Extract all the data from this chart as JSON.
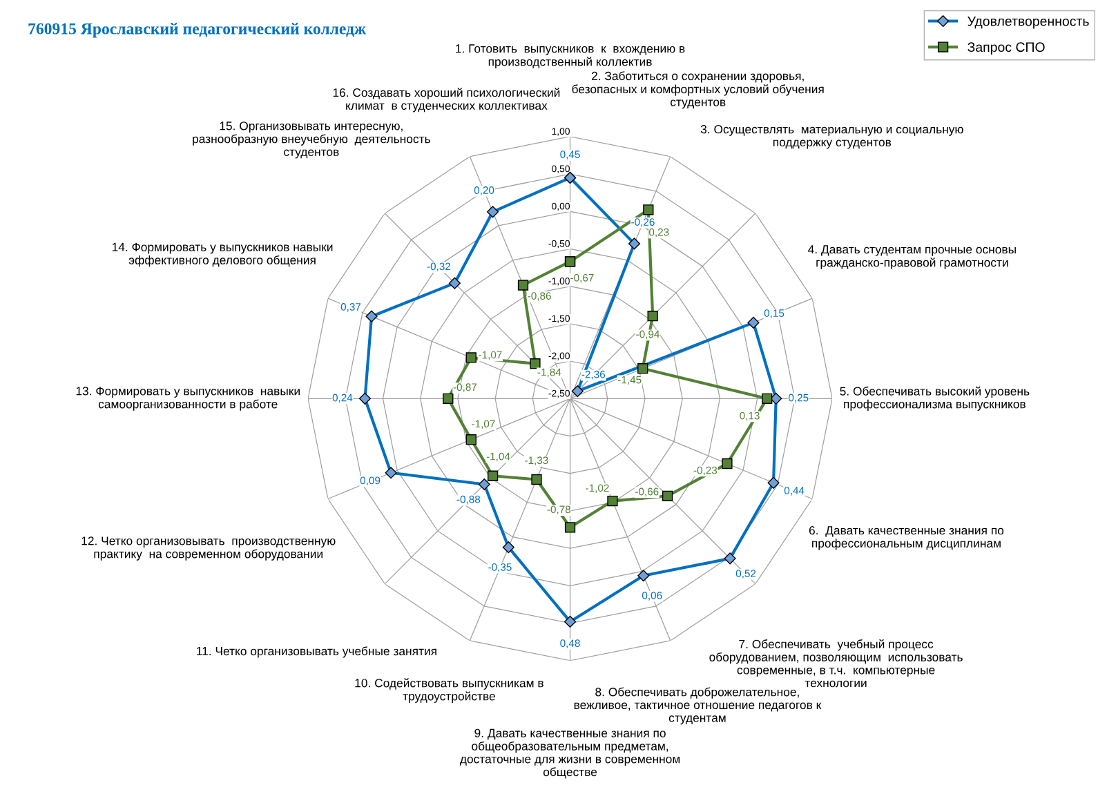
{
  "chart_data": {
    "type": "radar",
    "title": "760915 Ярославский педагогический колледж",
    "categories": [
      "1. Готовить  выпускников  к  вхождению в\nпроизводственный коллектив",
      "2. Заботиться о сохранении здоровья,\nбезопасных и комфортных условий обучения\nстудентов",
      "3. Осуществлять  материальную и социальную\nподдержку студентов",
      "4. Давать студентам прочные основы\nгражданско-правовой грамотности",
      "5. Обеспечивать высокий уровень\nпрофессионализма выпускников",
      "6.  Давать качественные знания по\nпрофессиональным дисциплинам",
      "7. Обеспечивать  учебный процесс\nоборудованием, позволяющим  использовать\nсовременные, в т.ч.  компьютерные\nтехнологии",
      "8. Обеспечивать доброжелательное,\nвежливое, тактичное отношение педагогов к\nстудентам",
      "9. Давать качественные знания по\nобщеобразовательным предметам,\nдостаточные для жизни в современном\nобществе",
      "10. Содействовать выпускникам в\nтрудоустройстве",
      "11. Четко организовывать учебные занятия",
      "12. Четко организовывать  производственную\nпрактику  на современном оборудовании",
      "13. Формировать у выпускников  навыки\nсамоорганизованности в работе",
      "14. Формировать у выпускников навыки\nэффективного делового общения",
      "15. Организовывать интересную,\nразнообразную внеучебную  деятельность\nстудентов",
      "16. Создавать хороший психологический\nклимат  в студенческих коллективах"
    ],
    "series": [
      {
        "name": "Удовлетворенность",
        "color": "#0070c0",
        "marker": "diamond",
        "value_labels": [
          "0,45",
          "-0,26",
          "-2,36",
          "0,15",
          "0,25",
          "0,44",
          "0,52",
          "0,06",
          "0,48",
          "-0,35",
          "-0,88",
          "0,09",
          "0,24",
          "0,37",
          "-0,32",
          "0,20"
        ],
        "values": [
          0.45,
          -0.26,
          -2.36,
          0.15,
          0.25,
          0.44,
          0.52,
          0.06,
          0.48,
          -0.35,
          -0.88,
          0.09,
          0.24,
          0.37,
          -0.32,
          0.2
        ]
      },
      {
        "name": "Запрос СПО",
        "color": "#538135",
        "marker": "square",
        "value_labels": [
          "-0,67",
          "0,23",
          "-0,94",
          "-1,45",
          "0,13",
          "-0,23",
          "-0,66",
          "-1,02",
          "-0,78",
          "-1,33",
          "-1,04",
          "-1,07",
          "-0,87",
          "-1,07",
          "-1,84",
          "-0,86"
        ],
        "values": [
          -0.67,
          0.23,
          -0.94,
          -1.45,
          0.13,
          -0.23,
          -0.66,
          -1.02,
          -0.78,
          -1.33,
          -1.04,
          -1.07,
          -0.87,
          -1.07,
          -1.84,
          -0.86
        ]
      }
    ],
    "ylim": [
      -2.5,
      1.0
    ],
    "yticks": [
      {
        "value": -2.5,
        "label": "-2,50"
      },
      {
        "value": -2.0,
        "label": "-2,00"
      },
      {
        "value": -1.5,
        "label": "-1,50"
      },
      {
        "value": -1.0,
        "label": "-1,00"
      },
      {
        "value": -0.5,
        "label": "-0,50"
      },
      {
        "value": 0.0,
        "label": "0,00"
      },
      {
        "value": 0.5,
        "label": "0,50"
      },
      {
        "value": 1.0,
        "label": "1,00"
      }
    ],
    "grid": true,
    "legend": "top right"
  }
}
